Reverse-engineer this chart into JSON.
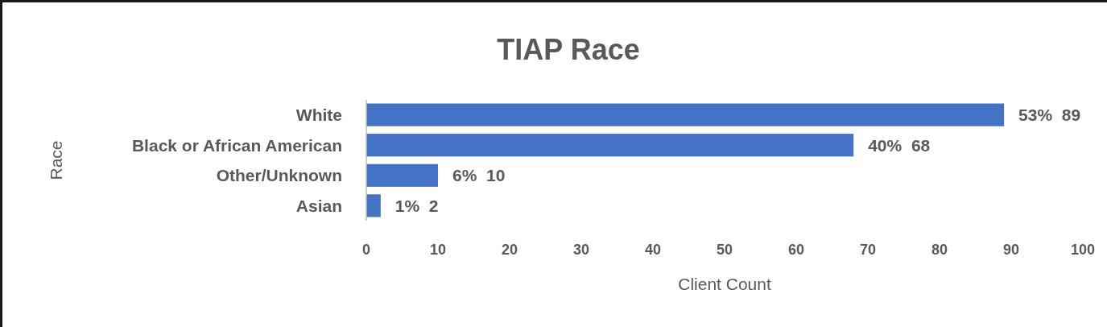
{
  "chart_data": {
    "type": "bar",
    "orientation": "horizontal",
    "title": "TIAP Race",
    "xlabel": "Client Count",
    "ylabel": "Race",
    "categories": [
      "White",
      "Black or African American",
      "Other/Unknown",
      "Asian"
    ],
    "values": [
      89,
      68,
      10,
      2
    ],
    "value_labels": [
      "53%  89",
      "40%  68",
      "6%  10",
      "1%  2"
    ],
    "color": "#4472c4",
    "xlim": [
      0,
      100
    ],
    "xticks": [
      0,
      10,
      20,
      30,
      40,
      50,
      60,
      70,
      80,
      90,
      100
    ],
    "grid": false
  }
}
